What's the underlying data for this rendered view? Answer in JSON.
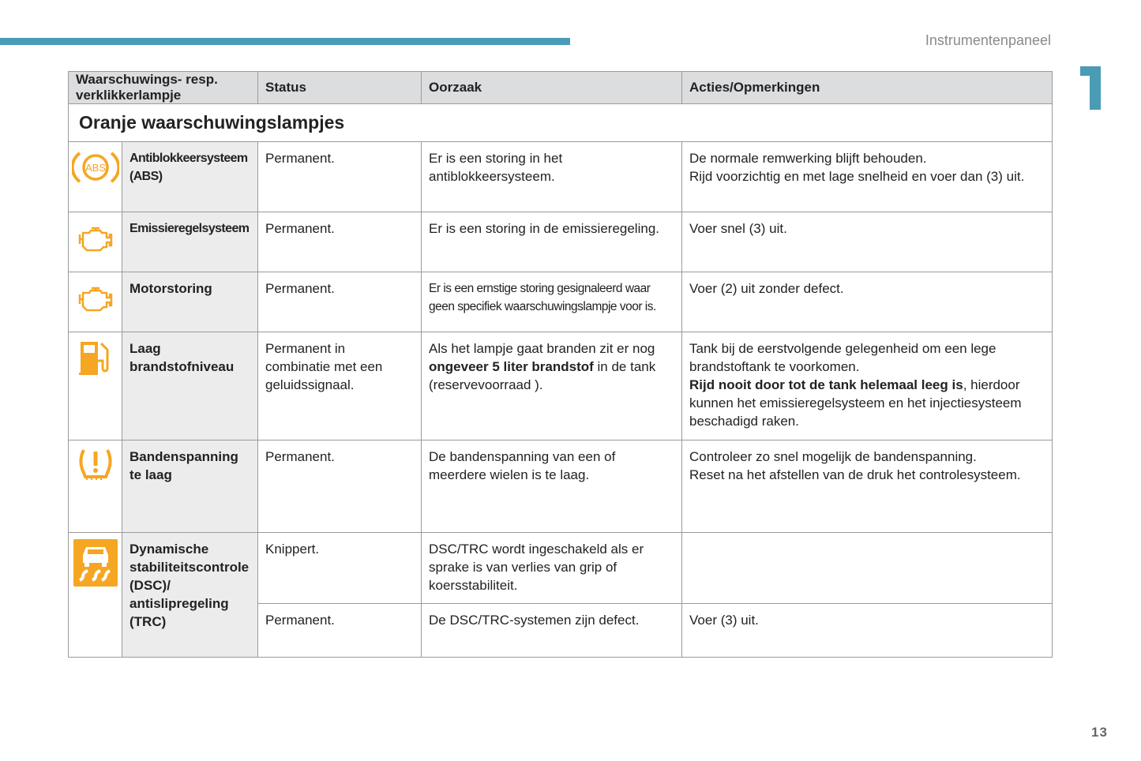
{
  "header": {
    "section_title": "Instrumentenpaneel",
    "chapter": "1",
    "page_number": "13",
    "accent_color": "#4a9bb5"
  },
  "table": {
    "columns": [
      "Waarschuwings- resp. verklikkerlampje",
      "Status",
      "Oorzaak",
      "Acties/Opmerkingen"
    ],
    "section": "Oranje waarschuwingslampjes",
    "icon_color": "#f5a623",
    "rows": [
      {
        "icon": "abs-icon",
        "label": "Antiblokkeersysteem (ABS)",
        "status": "Permanent.",
        "cause": "Er is een storing in het antiblokkeersysteem.",
        "action": [
          "De normale remwerking blijft behouden.",
          "Rijd voorzichtig en met lage snelheid en voer dan (3) uit."
        ]
      },
      {
        "icon": "engine-icon",
        "label": "Emissieregelsysteem",
        "status": "Permanent.",
        "cause": "Er is een storing in de emissieregeling.",
        "action": "Voer snel (3) uit."
      },
      {
        "icon": "engine-icon",
        "label": "Motorstoring",
        "status": "Permanent.",
        "cause": "Er is een ernstige storing gesignaleerd waar geen specifiek waarschuwingslampje voor is.",
        "action": "Voer (2) uit zonder defect."
      },
      {
        "icon": "fuel-pump-icon",
        "label": "Laag brandstofniveau",
        "status": "Permanent in combinatie met een geluidssignaal.",
        "cause": {
          "pre": "Als het lampje gaat branden zit er nog ",
          "bold": "ongeveer 5 liter brandstof",
          "post": " in de tank (reservevoorraad )."
        },
        "action": {
          "pre": "Tank bij de eerstvolgende gelegenheid om een lege brandstoftank te voorkomen.",
          "bold": "Rijd nooit door tot de tank helemaal leeg is",
          "post": ", hierdoor kunnen het emissieregelsysteem en het injectiesysteem beschadigd raken."
        }
      },
      {
        "icon": "tire-pressure-icon",
        "label": "Bandenspanning te laag",
        "status": "Permanent.",
        "cause": "De bandenspanning van een of meerdere wielen is te laag.",
        "action": [
          "Controleer zo snel mogelijk de bandenspanning.",
          "Reset na het afstellen van de druk het controlesysteem."
        ]
      },
      {
        "icon": "skid-control-icon",
        "label": "Dynamische stabiliteitscontrole (DSC)/ antislipregeling (TRC)",
        "sub": [
          {
            "status": "Knippert.",
            "cause": "DSC/TRC wordt ingeschakeld als er sprake is van verlies van grip of koersstabiliteit.",
            "action": ""
          },
          {
            "status": "Permanent.",
            "cause": "De DSC/TRC-systemen zijn defect.",
            "action": "Voer (3) uit."
          }
        ]
      }
    ]
  }
}
